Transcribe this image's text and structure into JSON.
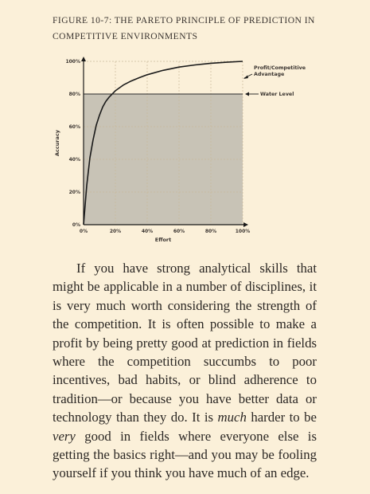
{
  "caption": {
    "line1": "FIGURE 10-7: THE PARETO PRINCIPLE OF PREDICTION IN",
    "line2": "COMPETITIVE ENVIRONMENTS"
  },
  "chart_data": {
    "type": "line",
    "title": "",
    "xlabel": "Effort",
    "ylabel": "Accuracy",
    "xlim": [
      0,
      100
    ],
    "ylim": [
      0,
      100
    ],
    "x_ticks": [
      "0%",
      "20%",
      "40%",
      "60%",
      "80%",
      "100%"
    ],
    "y_ticks": [
      "0%",
      "20%",
      "40%",
      "60%",
      "80%",
      "100%"
    ],
    "grid": true,
    "series": [
      {
        "name": "Profit/Competitive Advantage",
        "x": [
          0,
          2,
          4,
          6,
          8,
          10,
          12,
          14,
          16,
          18,
          20,
          25,
          30,
          35,
          40,
          50,
          60,
          70,
          80,
          90,
          100
        ],
        "y": [
          0,
          24,
          41,
          52,
          61,
          67,
          72,
          75.5,
          78,
          80,
          82,
          85.5,
          88,
          90,
          91.8,
          94.5,
          96.5,
          97.8,
          98.8,
          99.5,
          100
        ]
      }
    ],
    "water_level": 80,
    "annotations": {
      "curve_label_line1": "Profit/Competitive",
      "curve_label_line2": "Advantage",
      "water_label": "Water Level"
    },
    "colors": {
      "shaded_region": "#c8c3b6",
      "curve": "#1a1a1a",
      "grid": "#c9b99a",
      "background": "#fbf0d9"
    }
  },
  "body": {
    "seg1": "If you have strong analytical skills that might be applicable in a number of disciplines, it is very much worth considering the strength of the competition. It is often possible to make a profit by being pretty good at prediction in fields where the competition succumbs to poor incentives, bad habits, or blind adherence to tradition—or because you have better data or technology than they do. It is ",
    "em1": "much",
    "seg2": " harder to be ",
    "em2": "very",
    "seg3": " good in fields where everyone else is getting the basics right—and you may be fooling yourself if you think you have much of an edge."
  }
}
